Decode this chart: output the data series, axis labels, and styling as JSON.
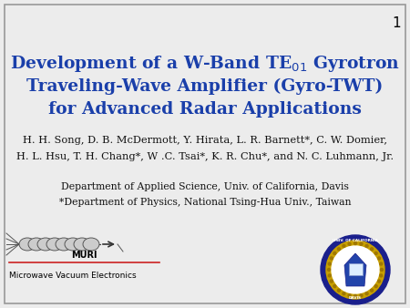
{
  "background_color": "#ececec",
  "slide_number": "1",
  "title_line1": "Development of a W-Band TE$_{01}$ Gyrotron",
  "title_line2": "Traveling-Wave Amplifier (Gyro-TWT)",
  "title_line3": "for Advanced Radar Applications",
  "title_color": "#1a3faa",
  "title_fontsize": 13.5,
  "authors_line1": "H. H. Song, D. B. McDermott, Y. Hirata, L. R. Barnett*, C. W. Domier,",
  "authors_line2": "H. L. Hsu, T. H. Chang*, W .C. Tsai*, K. R. Chu*, and N. C. Luhmann, Jr.",
  "authors_fontsize": 8.2,
  "authors_color": "#111111",
  "affil_line1": "Department of Applied Science, Univ. of California, Davis",
  "affil_line2": "*Department of Physics, National Tsing-Hua Univ., Taiwan",
  "affil_fontsize": 7.8,
  "affil_color": "#111111",
  "border_color": "#999999",
  "slide_num_fontsize": 11,
  "muri_text": "MURI",
  "muri_sub": "Microwave Vacuum Electronics"
}
